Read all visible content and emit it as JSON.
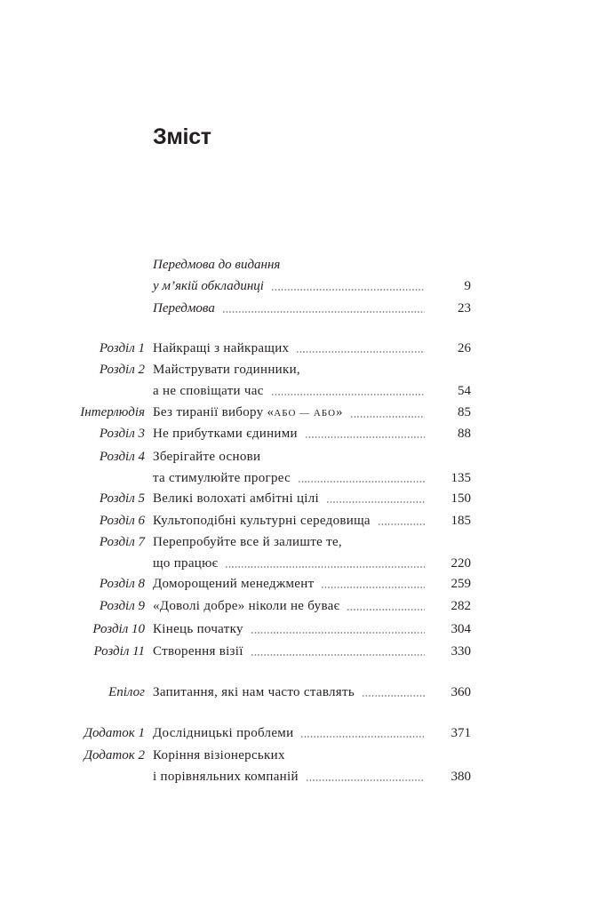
{
  "page_title": "Зміст",
  "entries": [
    {
      "label": "",
      "lines": [
        "Передмова до видання",
        "у м’якій обкладинці"
      ],
      "page": "9",
      "italic": true
    },
    {
      "label": "",
      "lines": [
        "Передмова"
      ],
      "page": "23",
      "italic": true
    },
    {
      "label": "Розділ 1",
      "lines": [
        "Найкращі з найкращих"
      ],
      "page": "26"
    },
    {
      "label": "Розділ 2",
      "lines": [
        "Майструвати годинники,",
        "а не сповіщати час"
      ],
      "page": "54"
    },
    {
      "label": "Інтерлюдія",
      "lines": [
        "Без тиранії вибору «АБО — АБО»"
      ],
      "page": "85"
    },
    {
      "label": "Розділ 3",
      "lines": [
        "Не прибутками єдиними"
      ],
      "page": "88"
    },
    {
      "label": "Розділ 4",
      "lines": [
        "Зберігайте основи",
        "та стимулюйте прогрес"
      ],
      "page": "135"
    },
    {
      "label": "Розділ 5",
      "lines": [
        "Великі волохаті амбітні цілі"
      ],
      "page": "150"
    },
    {
      "label": "Розділ 6",
      "lines": [
        "Культоподібні культурні середовища"
      ],
      "page": "185"
    },
    {
      "label": "Розділ 7",
      "lines": [
        "Перепробуйте все й залиште те,",
        "що працює"
      ],
      "page": "220"
    },
    {
      "label": "Розділ 8",
      "lines": [
        "Доморощений менеджмент"
      ],
      "page": "259"
    },
    {
      "label": "Розділ 9",
      "lines": [
        "«Доволі добре» ніколи не буває"
      ],
      "page": "282"
    },
    {
      "label": "Розділ 10",
      "lines": [
        "Кінець початку"
      ],
      "page": "304"
    },
    {
      "label": "Розділ 11",
      "lines": [
        "Створення візії"
      ],
      "page": "330"
    },
    {
      "label": "Епілог",
      "lines": [
        "Запитання, які нам часто ставлять"
      ],
      "page": "360"
    },
    {
      "label": "Додаток 1",
      "lines": [
        "Дослідницькі проблеми"
      ],
      "page": "371"
    },
    {
      "label": "Додаток 2",
      "lines": [
        "Коріння візіонерських",
        "і порівняльних компаній"
      ],
      "page": "380"
    }
  ]
}
